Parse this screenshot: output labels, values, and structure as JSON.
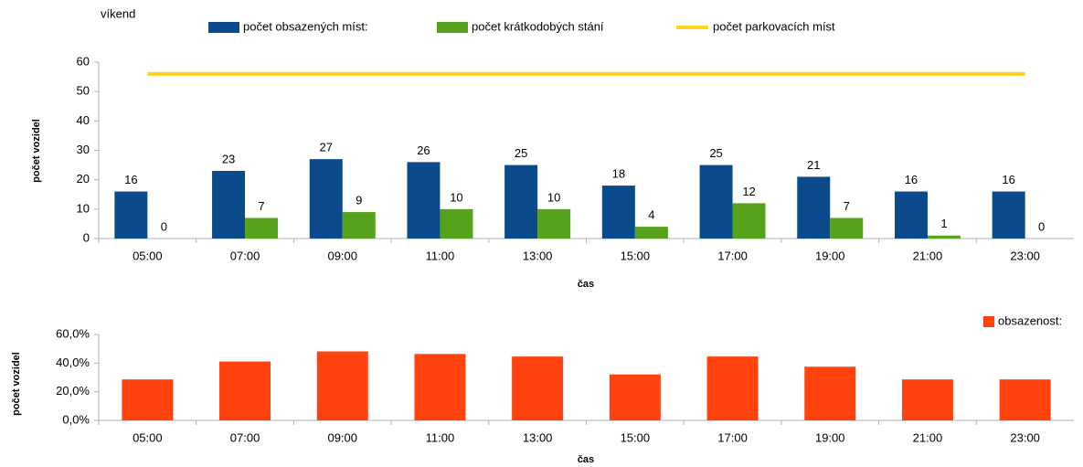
{
  "chart_data": [
    {
      "type": "bar",
      "title": "víkend",
      "y_label": "počet vozidel",
      "x_label": "čas",
      "categories": [
        "05:00",
        "07:00",
        "09:00",
        "11:00",
        "13:00",
        "15:00",
        "17:00",
        "19:00",
        "21:00",
        "23:00"
      ],
      "series": [
        {
          "name": "počet obsazených míst:",
          "color": "#0b4a8b",
          "values": [
            16,
            23,
            27,
            26,
            25,
            18,
            25,
            21,
            16,
            16
          ]
        },
        {
          "name": "počet krátkodobých stání",
          "color": "#57a21d",
          "values": [
            0,
            7,
            9,
            10,
            10,
            4,
            12,
            7,
            1,
            0
          ]
        },
        {
          "name": "počet parkovacích míst",
          "color": "#ffd320",
          "type": "line",
          "values": [
            56,
            56,
            56,
            56,
            56,
            56,
            56,
            56,
            56,
            56
          ]
        }
      ],
      "ylim": [
        0,
        60
      ],
      "yticks": [
        0,
        10,
        20,
        30,
        40,
        50,
        60
      ],
      "grid": false
    },
    {
      "type": "bar",
      "y_label": "počet vozidel",
      "x_label": "čas",
      "categories": [
        "05:00",
        "07:00",
        "09:00",
        "11:00",
        "13:00",
        "15:00",
        "17:00",
        "19:00",
        "21:00",
        "23:00"
      ],
      "series": [
        {
          "name": "obsazenost:",
          "color": "#ff420e",
          "values": [
            28.6,
            41.1,
            48.2,
            46.4,
            44.6,
            32.1,
            44.6,
            37.5,
            28.6,
            28.6
          ]
        }
      ],
      "ylim": [
        0,
        60
      ],
      "yticks": [
        {
          "value": 0,
          "label": "0,0%"
        },
        {
          "value": 20,
          "label": "20,0%"
        },
        {
          "value": 40,
          "label": "40,0%"
        },
        {
          "value": 60,
          "label": "60,0%"
        }
      ],
      "grid": false
    }
  ]
}
